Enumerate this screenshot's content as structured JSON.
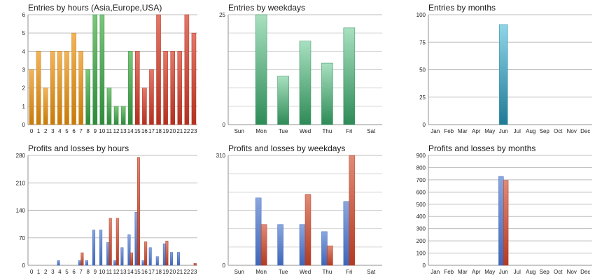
{
  "chart_data": [
    {
      "id": "entries_hours",
      "type": "bar",
      "title": "Entries by hours (Asia,Europe,USA)",
      "categories": [
        "0",
        "1",
        "2",
        "3",
        "4",
        "5",
        "6",
        "7",
        "8",
        "9",
        "10",
        "11",
        "12",
        "13",
        "14",
        "15",
        "16",
        "17",
        "18",
        "19",
        "20",
        "21",
        "22",
        "23"
      ],
      "series": [
        {
          "values": [
            3,
            4,
            2,
            4,
            4,
            4,
            5,
            4,
            3,
            6,
            6,
            2,
            1,
            1,
            4,
            4,
            2,
            3,
            6,
            4,
            4,
            4,
            6,
            5
          ]
        }
      ],
      "bar_colors": [
        "#f3b45a",
        "#f3b45a",
        "#f3b45a",
        "#f3b45a",
        "#f3b45a",
        "#f3b45a",
        "#f3b45a",
        "#f3b45a",
        "#7cc77c",
        "#7cc77c",
        "#7cc77c",
        "#7cc77c",
        "#7cc77c",
        "#7cc77c",
        "#7cc77c",
        "#e4786a",
        "#e4786a",
        "#e4786a",
        "#e4786a",
        "#e4786a",
        "#e4786a",
        "#e4786a",
        "#e4786a",
        "#e4786a"
      ],
      "bar_dark_colors": [
        "#c77a08",
        "#c77a08",
        "#c77a08",
        "#c77a08",
        "#c77a08",
        "#c77a08",
        "#c77a08",
        "#c77a08",
        "#2f8a3b",
        "#2f8a3b",
        "#2f8a3b",
        "#2f8a3b",
        "#2f8a3b",
        "#2f8a3b",
        "#2f8a3b",
        "#b3301f",
        "#b3301f",
        "#b3301f",
        "#b3301f",
        "#b3301f",
        "#b3301f",
        "#b3301f",
        "#b3301f",
        "#b3301f"
      ],
      "ylim": [
        0,
        6
      ],
      "yticks": [
        "0",
        "1",
        "2",
        "3",
        "4",
        "5",
        "6"
      ],
      "grid": true
    },
    {
      "id": "entries_weekdays",
      "type": "bar",
      "title": "Entries by weekdays",
      "categories": [
        "Sun",
        "Mon",
        "Tue",
        "Wed",
        "Thu",
        "Fri",
        "Sat"
      ],
      "series": [
        {
          "values": [
            0,
            25,
            11,
            19,
            14,
            22,
            0
          ]
        }
      ],
      "bar_colors": [
        "#a8e0c0"
      ],
      "bar_dark_colors": [
        "#2e8b57"
      ],
      "ylim": [
        0,
        25
      ],
      "yticks": [
        "0",
        "25"
      ],
      "grid": true
    },
    {
      "id": "entries_months",
      "type": "bar",
      "title": "Entries by months",
      "categories": [
        "Jan",
        "Feb",
        "Mar",
        "Apr",
        "May",
        "Jun",
        "Jul",
        "Aug",
        "Sep",
        "Oct",
        "Nov",
        "Dec"
      ],
      "series": [
        {
          "values": [
            0,
            0,
            0,
            0,
            0,
            91,
            0,
            0,
            0,
            0,
            0,
            0
          ]
        }
      ],
      "bar_colors": [
        "#8fd6e8"
      ],
      "bar_dark_colors": [
        "#1f7a96"
      ],
      "ylim": [
        0,
        100
      ],
      "yticks": [
        "0",
        "25",
        "50",
        "75",
        "100"
      ],
      "grid": true
    },
    {
      "id": "pl_hours",
      "type": "bar",
      "title": "Profits and losses by hours",
      "categories": [
        "0",
        "1",
        "2",
        "3",
        "4",
        "5",
        "6",
        "7",
        "8",
        "9",
        "10",
        "11",
        "12",
        "13",
        "14",
        "15",
        "16",
        "17",
        "18",
        "19",
        "20",
        "21",
        "22",
        "23"
      ],
      "series": [
        {
          "color": "#3f66b8",
          "light": "#8aa6df",
          "values": [
            0,
            0,
            0,
            0,
            12,
            0,
            0,
            12,
            12,
            90,
            90,
            58,
            12,
            45,
            78,
            135,
            12,
            45,
            22,
            55,
            33,
            33,
            0,
            0
          ]
        },
        {
          "color": "#b33a22",
          "light": "#e08a76",
          "values": [
            0,
            0,
            0,
            0,
            0,
            0,
            0,
            32,
            0,
            0,
            0,
            120,
            120,
            0,
            32,
            275,
            60,
            0,
            0,
            62,
            0,
            0,
            0,
            5
          ]
        }
      ],
      "ylim": [
        0,
        280
      ],
      "yticks": [
        "0",
        "70",
        "140",
        "210",
        "280"
      ],
      "grid": true
    },
    {
      "id": "pl_weekdays",
      "type": "bar",
      "title": "Profits and losses by weekdays",
      "categories": [
        "Sun",
        "Mon",
        "Tue",
        "Wed",
        "Thu",
        "Fri",
        "Sat"
      ],
      "series": [
        {
          "color": "#3f66b8",
          "light": "#8aa6df",
          "values": [
            0,
            190,
            115,
            115,
            95,
            180,
            0
          ]
        },
        {
          "color": "#b33a22",
          "light": "#e08a76",
          "values": [
            0,
            115,
            0,
            200,
            55,
            310,
            0
          ]
        }
      ],
      "ylim": [
        0,
        310
      ],
      "yticks": [
        "0",
        "310"
      ],
      "grid": true
    },
    {
      "id": "pl_months",
      "type": "bar",
      "title": "Profits and losses by months",
      "categories": [
        "Jan",
        "Feb",
        "Mar",
        "Apr",
        "May",
        "Jun",
        "Jul",
        "Aug",
        "Sep",
        "Oct",
        "Nov",
        "Dec"
      ],
      "series": [
        {
          "color": "#3f66b8",
          "light": "#8aa6df",
          "values": [
            0,
            0,
            0,
            0,
            0,
            728,
            0,
            0,
            0,
            0,
            0,
            0
          ]
        },
        {
          "color": "#b33a22",
          "light": "#e08a76",
          "values": [
            0,
            0,
            0,
            0,
            0,
            695,
            0,
            0,
            0,
            0,
            0,
            0
          ]
        }
      ],
      "ylim": [
        0,
        900
      ],
      "yticks": [
        "0",
        "100",
        "200",
        "300",
        "400",
        "500",
        "600",
        "700",
        "800",
        "900"
      ],
      "grid": true
    }
  ]
}
